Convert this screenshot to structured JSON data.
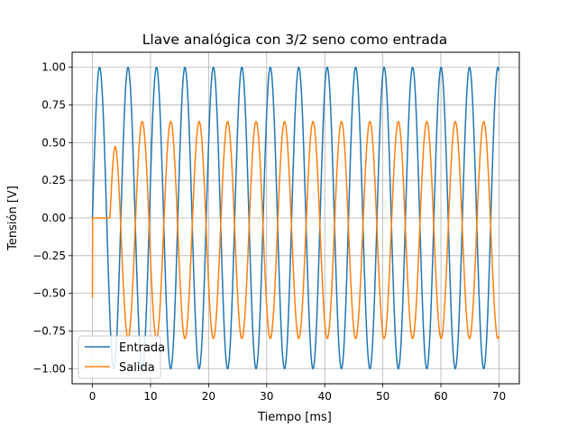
{
  "chart_data": {
    "type": "line",
    "title": "Llave analógica con 3/2 seno como entrada",
    "xlabel": "Tiempo [ms]",
    "ylabel": "Tensión [V]",
    "xlim": [
      -3.5,
      73.5
    ],
    "ylim": [
      -1.1,
      1.1
    ],
    "x_ticks": [
      0,
      10,
      20,
      30,
      40,
      50,
      60,
      70
    ],
    "x_tick_labels": [
      "0",
      "10",
      "20",
      "30",
      "40",
      "50",
      "60",
      "70"
    ],
    "y_ticks": [
      -1.0,
      -0.75,
      -0.5,
      -0.25,
      0.0,
      0.25,
      0.5,
      0.75,
      1.0
    ],
    "y_tick_labels": [
      "−1.00",
      "−0.75",
      "−0.50",
      "−0.25",
      "0.00",
      "0.25",
      "0.50",
      "0.75",
      "1.00"
    ],
    "grid": true,
    "legend_position": "lower-left",
    "x_range": [
      0,
      70
    ],
    "series": [
      {
        "name": "Entrada",
        "color": "#1f77b4",
        "description": "sine, amplitude 1 V, period 4.9 ms",
        "amplitude": 1.0,
        "period_ms": 4.9
      },
      {
        "name": "Salida",
        "color": "#ff7f0e",
        "description": "starts at -0.53 V, zero until ~3 ms, then oscillates between about -0.80 and 0.64 V with period 4.9 ms",
        "initial_value": -0.53,
        "start_ms": 3.0,
        "max": 0.64,
        "min": -0.8,
        "period_ms": 4.9
      }
    ]
  }
}
